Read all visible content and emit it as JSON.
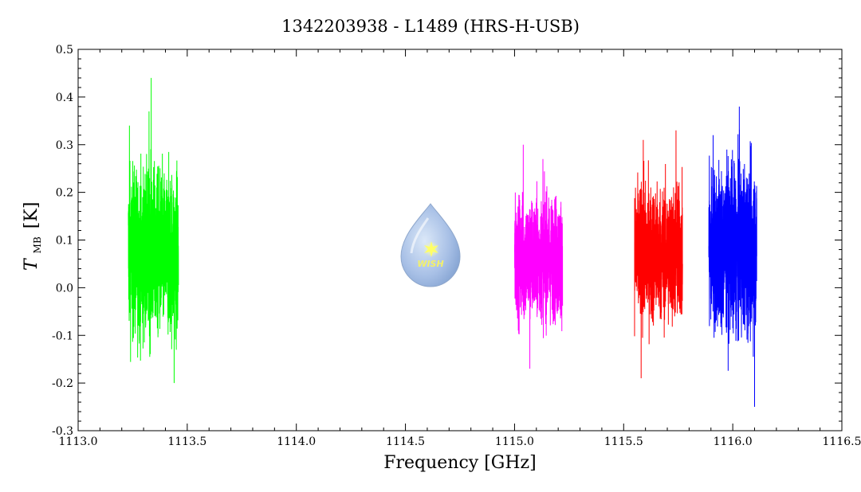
{
  "chart_data": {
    "type": "line",
    "title": "1342203938 - L1489 (HRS-H-USB)",
    "xlabel": "Frequency [GHz]",
    "ylabel": {
      "symbol": "T",
      "subscript": "MB",
      "unit": "[K]"
    },
    "xlim": [
      1113.0,
      1116.5
    ],
    "ylim": [
      -0.3,
      0.5
    ],
    "x_ticks": [
      "1113.0",
      "1113.5",
      "1114.0",
      "1114.5",
      "1115.0",
      "1115.5",
      "1116.0",
      "1116.5"
    ],
    "y_ticks": [
      "-0.3",
      "-0.2",
      "-0.1",
      "0.0",
      "0.1",
      "0.2",
      "0.3",
      "0.4",
      "0.5"
    ],
    "x_tick_values": [
      1113.0,
      1113.5,
      1114.0,
      1114.5,
      1115.0,
      1115.5,
      1116.0,
      1116.5
    ],
    "y_tick_values": [
      -0.3,
      -0.2,
      -0.1,
      0.0,
      0.1,
      0.2,
      0.3,
      0.4,
      0.5
    ],
    "grid": false,
    "series": [
      {
        "color": "#00ff00",
        "x_range": [
          1113.23,
          1113.46
        ],
        "mean": 0.07,
        "min": -0.2,
        "max": 0.44,
        "spikes": [
          [
            1113.335,
            0.44
          ],
          [
            1113.325,
            0.37
          ],
          [
            1113.44,
            -0.2
          ],
          [
            1113.235,
            0.34
          ]
        ]
      },
      {
        "color": "#ff00ff",
        "x_range": [
          1115.0,
          1115.22
        ],
        "mean": 0.06,
        "min": -0.17,
        "max": 0.3,
        "spikes": [
          [
            1115.04,
            0.3
          ],
          [
            1115.07,
            -0.17
          ],
          [
            1115.13,
            0.27
          ]
        ]
      },
      {
        "color": "#ff0000",
        "x_range": [
          1115.55,
          1115.77
        ],
        "mean": 0.07,
        "min": -0.19,
        "max": 0.33,
        "spikes": [
          [
            1115.74,
            0.33
          ],
          [
            1115.58,
            -0.19
          ],
          [
            1115.59,
            0.31
          ]
        ]
      },
      {
        "color": "#0000ff",
        "x_range": [
          1115.89,
          1116.11
        ],
        "mean": 0.08,
        "min": -0.25,
        "max": 0.38,
        "spikes": [
          [
            1116.03,
            0.38
          ],
          [
            1116.1,
            -0.25
          ],
          [
            1115.91,
            0.32
          ]
        ]
      }
    ]
  },
  "logo": {
    "text": "WISH"
  }
}
